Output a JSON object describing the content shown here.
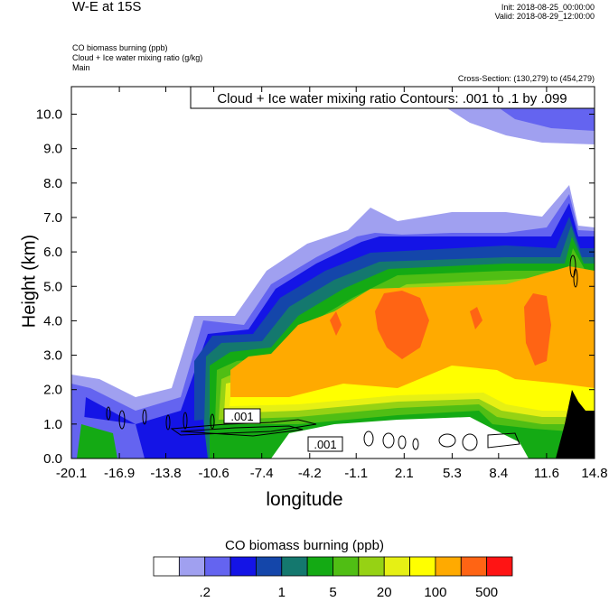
{
  "header": {
    "title": "W-E at 15S",
    "init": "Init: 2018-08-25_00:00:00",
    "valid": "Valid: 2018-08-29_12:00:00",
    "field1": "CO biomass burning   (ppb)",
    "field2": "Cloud + Ice water mixing ratio   (g/kg)",
    "field3": "Main",
    "cross_section": "Cross-Section: (130,279) to (454,279)"
  },
  "chart_data": {
    "type": "heatmap",
    "contour_title": "Cloud + Ice water mixing ratio Contours: .001 to .1 by .099",
    "xlabel": "longitude",
    "ylabel": "Height (km)",
    "xlim": [
      -20.1,
      14.8
    ],
    "ylim": [
      0.0,
      10.8
    ],
    "x_ticks": [
      "-20.1",
      "-16.9",
      "-13.8",
      "-10.6",
      "-7.4",
      "-4.2",
      "-1.1",
      "2.1",
      "5.3",
      "8.4",
      "11.6",
      "14.8"
    ],
    "y_ticks": [
      "0.0",
      "1.0",
      "2.0",
      "3.0",
      "4.0",
      "5.0",
      "6.0",
      "7.0",
      "8.0",
      "9.0",
      "10.0"
    ],
    "contour_labels": [
      ".001",
      ".001"
    ],
    "colorbar": {
      "title": "CO biomass burning  (ppb)",
      "colors": [
        "#ffffff",
        "#a0a0f0",
        "#6464f0",
        "#1414e6",
        "#1446aa",
        "#14786e",
        "#14aa14",
        "#50be14",
        "#96d214",
        "#e6f014",
        "#ffff00",
        "#ffaa00",
        "#ff6414",
        "#ff1414"
      ],
      "tick_labels": [
        ".2",
        "1",
        "5",
        "20",
        "100",
        "500"
      ]
    }
  }
}
